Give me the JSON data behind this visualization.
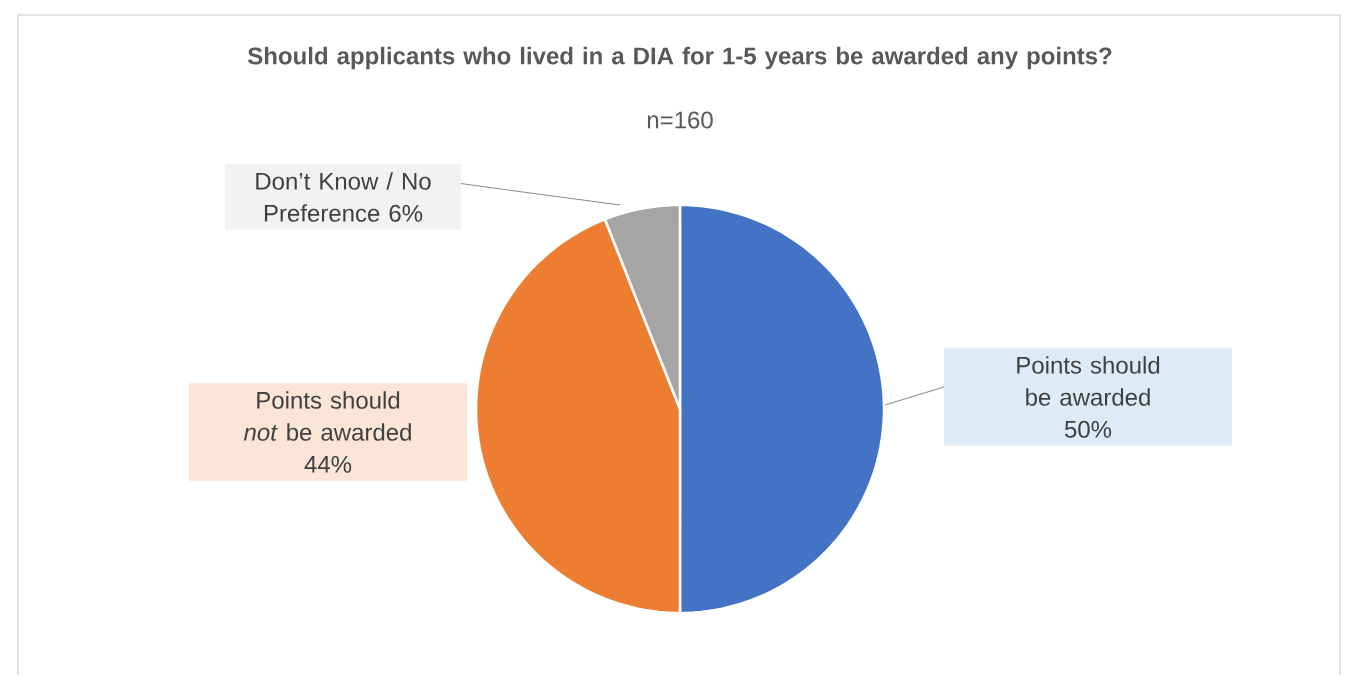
{
  "chart_data": {
    "type": "pie",
    "title": "Should applicants who lived in a DIA for 1-5 years be awarded any points?",
    "subtitle": "n=160",
    "categories": [
      "Points should be awarded",
      "Points should *not* be awarded",
      "Don’t Know / No Preference"
    ],
    "values": [
      50,
      44,
      6
    ],
    "colors": [
      "#4472c4",
      "#ed7d31",
      "#a5a5a5"
    ],
    "value_labels": [
      "50%",
      "44%",
      "6%"
    ]
  }
}
